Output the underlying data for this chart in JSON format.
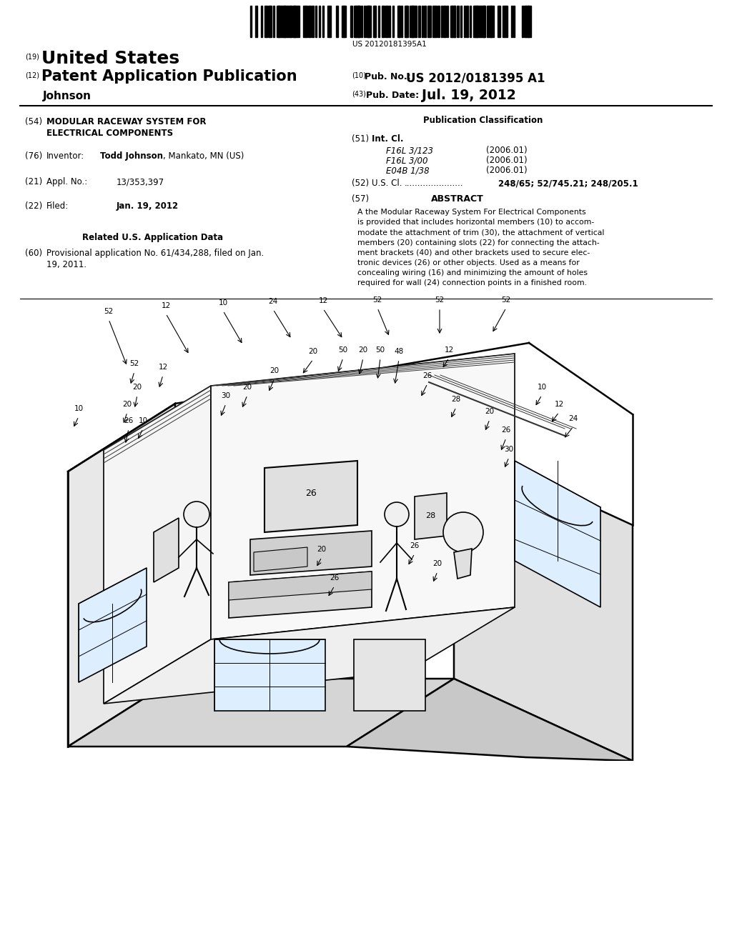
{
  "background_color": "#ffffff",
  "barcode_text": "US 20120181395A1",
  "header_line1_num": "(19)",
  "header_line1_text": "United States",
  "header_line2_num": "(12)",
  "header_line2_text": "Patent Application Publication",
  "header_line2_right_num": "(10)",
  "header_line2_right_label": "Pub. No.:",
  "header_line2_right_value": "US 2012/0181395 A1",
  "header_line3_left": "Johnson",
  "header_line3_right_num": "(43)",
  "header_line3_right_label": "Pub. Date:",
  "header_line3_right_value": "Jul. 19, 2012",
  "field54_num": "(54)",
  "field76_num": "(76)",
  "field76_label": "Inventor:",
  "field21_num": "(21)",
  "field21_label": "Appl. No.:",
  "field21_value": "13/353,397",
  "field22_num": "(22)",
  "field22_label": "Filed:",
  "field22_value": "Jan. 19, 2012",
  "related_heading": "Related U.S. Application Data",
  "field60_num": "(60)",
  "pub_class_heading": "Publication Classification",
  "field51_num": "(51)",
  "field51_label": "Int. Cl.",
  "field51_items": [
    [
      "F16L 3/123",
      "(2006.01)"
    ],
    [
      "F16L 3/00",
      "(2006.01)"
    ],
    [
      "E04B 1/38",
      "(2006.01)"
    ]
  ],
  "field52_num": "(52)",
  "field52_label": "U.S. Cl.",
  "field52_dots": "......................",
  "field52_value": "248/65; 52/745.21; 248/205.1",
  "field57_num": "(57)",
  "field57_label": "ABSTRACT",
  "abstract_lines": [
    "A the Modular Raceway System For Electrical Components",
    "is provided that includes horizontal members (10) to accom-",
    "modate the attachment of trim (30), the attachment of vertical",
    "members (20) containing slots (22) for connecting the attach-",
    "ment brackets (40) and other brackets used to secure elec-",
    "tronic devices (26) or other objects. Used as a means for",
    "concealing wiring (16) and minimizing the amount of holes",
    "required for wall (24) connection points in a finished room."
  ],
  "page_width": 10.24,
  "page_height": 13.2
}
